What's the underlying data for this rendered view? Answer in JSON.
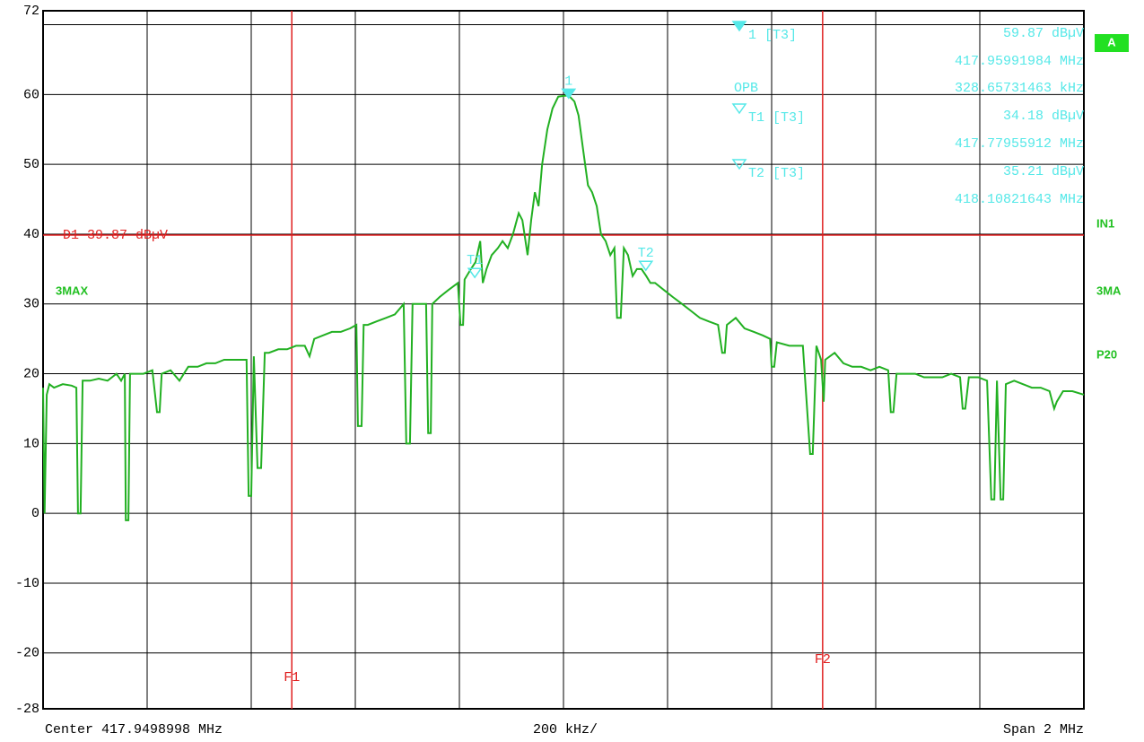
{
  "chart_data": {
    "type": "line",
    "xlim": [
      416.95,
      418.95
    ],
    "xticks": [
      416.95,
      417.15,
      417.35,
      417.55,
      417.75,
      417.95,
      418.15,
      418.35,
      418.55,
      418.75,
      418.95
    ],
    "ylim": [
      -28,
      72
    ],
    "yticks": [
      72,
      {
        "value": 70,
        "label": null
      },
      60,
      50,
      40,
      30,
      20,
      10,
      0,
      -10,
      -20,
      -28
    ],
    "grid": true,
    "x": [
      416.95,
      416.953,
      416.957,
      416.962,
      416.971,
      416.988,
      417.005,
      417.014,
      417.017,
      417.022,
      417.026,
      417.04,
      417.057,
      417.074,
      417.091,
      417.1,
      417.107,
      417.109,
      417.114,
      417.117,
      417.126,
      417.143,
      417.16,
      417.169,
      417.174,
      417.178,
      417.195,
      417.212,
      417.229,
      417.247,
      417.264,
      417.281,
      417.298,
      417.316,
      417.333,
      417.341,
      417.345,
      417.35,
      417.355,
      417.362,
      417.369,
      417.376,
      417.384,
      417.402,
      417.419,
      417.436,
      417.453,
      417.462,
      417.471,
      417.488,
      417.505,
      417.522,
      417.54,
      417.552,
      417.555,
      417.562,
      417.566,
      417.574,
      417.591,
      417.609,
      417.626,
      417.643,
      417.648,
      417.655,
      417.66,
      417.678,
      417.686,
      417.69,
      417.695,
      417.698,
      417.712,
      417.729,
      417.747,
      417.752,
      417.757,
      417.76,
      417.772,
      417.781,
      417.79,
      417.795,
      417.802,
      417.812,
      417.824,
      417.833,
      417.843,
      417.853,
      417.864,
      417.871,
      417.881,
      417.888,
      417.895,
      417.902,
      417.909,
      417.919,
      417.929,
      417.94,
      417.95,
      417.96,
      417.971,
      417.979,
      417.988,
      417.997,
      418.005,
      418.014,
      418.022,
      418.031,
      418.04,
      418.048,
      418.053,
      418.06,
      418.066,
      418.074,
      418.083,
      418.091,
      418.1,
      418.109,
      418.117,
      418.126,
      418.143,
      418.16,
      418.178,
      418.195,
      418.212,
      418.229,
      418.247,
      418.255,
      418.26,
      418.264,
      418.281,
      418.298,
      418.316,
      418.333,
      418.347,
      418.35,
      418.355,
      418.36,
      418.384,
      418.41,
      418.424,
      418.429,
      418.436,
      418.445,
      418.45,
      418.453,
      418.471,
      418.488,
      418.505,
      418.522,
      418.54,
      418.557,
      418.574,
      418.579,
      418.584,
      418.59,
      418.609,
      418.626,
      418.643,
      418.66,
      418.678,
      418.695,
      418.712,
      418.717,
      418.722,
      418.729,
      418.747,
      418.764,
      418.772,
      418.778,
      418.783,
      418.79,
      418.795,
      418.8,
      418.816,
      418.833,
      418.85,
      418.867,
      418.884,
      418.893,
      418.898,
      418.91,
      418.928,
      418.95
    ],
    "series": [
      {
        "name": "3MAX",
        "color": "#22b022",
        "values": [
          18,
          0,
          17,
          18.5,
          18,
          18.5,
          18.3,
          18,
          0,
          0,
          19,
          19,
          19.3,
          19,
          20,
          19,
          20,
          -1,
          -1,
          20,
          20,
          20,
          20.5,
          14.5,
          14.5,
          20,
          20.5,
          19,
          21,
          21,
          21.5,
          21.5,
          22,
          22,
          22,
          22,
          2.5,
          2.5,
          22.5,
          6.5,
          6.5,
          23,
          23,
          23.5,
          23.5,
          24,
          24,
          22.5,
          25,
          25.5,
          26,
          26,
          26.5,
          27,
          12.5,
          12.5,
          27,
          27,
          27.5,
          28,
          28.5,
          30,
          10,
          10,
          30,
          30,
          30,
          11.5,
          11.5,
          30,
          31,
          32,
          33,
          27,
          27,
          33.5,
          35,
          36,
          39,
          33,
          35,
          37,
          38,
          39,
          38,
          40,
          43,
          42,
          37,
          42,
          46,
          44,
          50,
          55,
          58,
          59.7,
          59.8,
          59.87,
          59,
          57,
          52,
          47,
          46,
          44,
          40,
          39,
          37,
          38,
          28,
          28,
          38,
          37,
          34,
          35,
          35,
          34,
          33,
          33,
          32,
          31,
          30,
          29,
          28,
          27.5,
          27,
          23,
          23,
          27,
          28,
          26.5,
          26,
          25.5,
          25,
          21,
          21,
          24.5,
          24,
          24,
          8.5,
          8.5,
          24,
          22,
          16,
          22,
          23,
          21.5,
          21,
          21,
          20.5,
          21,
          20.5,
          14.5,
          14.5,
          20,
          20,
          20,
          19.5,
          19.5,
          19.5,
          20,
          19.5,
          15,
          15,
          19.5,
          19.5,
          19,
          2,
          2,
          19,
          2,
          2,
          18.5,
          19,
          18.5,
          18,
          18,
          17.5,
          15,
          16,
          17.5,
          17.5,
          17
        ]
      }
    ],
    "markers": [
      {
        "name": "1",
        "label": "1 [T3]",
        "x": 417.95991984,
        "y": 59.87,
        "value_label": "59.87 dBµV",
        "x_label": "417.95991984 MHz"
      },
      {
        "name": "T1",
        "label": "T1 [T3]",
        "x": 417.77955912,
        "y": 34.18,
        "value_label": "34.18 dBµV",
        "x_label": "417.77955912 MHz"
      },
      {
        "name": "T2",
        "label": "T2 [T3]",
        "x": 418.10821643,
        "y": 35.21,
        "value_label": "35.21 dBµV",
        "x_label": "418.10821643 MHz"
      }
    ],
    "marker_color": "#55e8e8",
    "opb": {
      "label": "OPB",
      "value_label": "328.65731463 kHz"
    },
    "display_line": {
      "label": "D1 39.87 dBµV",
      "value": 39.87,
      "color": "#e02020"
    },
    "freq_lines": [
      {
        "label": "F1",
        "x": 417.428
      },
      {
        "label": "F2",
        "x": 418.448
      }
    ],
    "side_labels": [
      "A",
      "IN1",
      "3MA",
      "P20"
    ],
    "footer": {
      "center": "Center 417.9498998 MHz",
      "div": "200 kHz/",
      "span": "Span 2 MHz"
    }
  }
}
